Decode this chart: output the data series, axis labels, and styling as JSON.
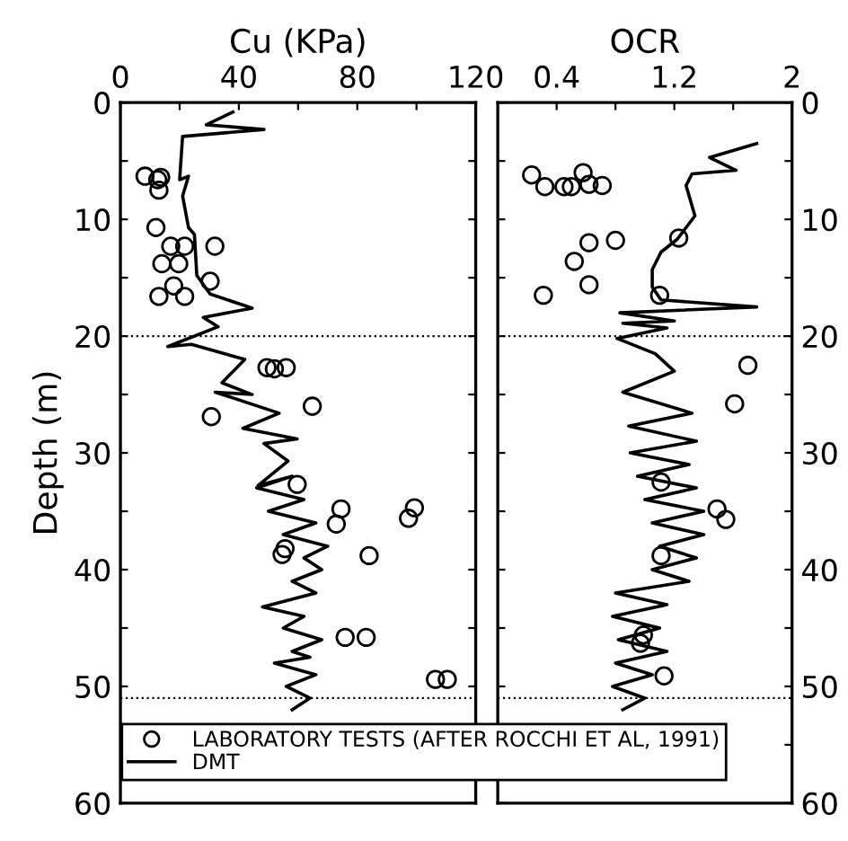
{
  "chart_data": [
    {
      "type": "scatter",
      "title": "Cu (KPa)",
      "ylabel": "Depth (m)",
      "xlim": [
        0,
        120
      ],
      "ylim": [
        60,
        0
      ],
      "xticks": [
        0,
        {
          "value": 20,
          "label": null
        },
        40,
        {
          "value": 60,
          "label": null
        },
        80,
        {
          "value": 100,
          "label": null
        },
        120
      ],
      "yticks": [
        0,
        {
          "value": 5,
          "label": null
        },
        10,
        {
          "value": 15,
          "label": null
        },
        20,
        {
          "value": 25,
          "label": null
        },
        30,
        {
          "value": 35,
          "label": null
        },
        40,
        {
          "value": 45,
          "label": null
        },
        50,
        {
          "value": 55,
          "label": null
        },
        60
      ],
      "legend": "bottom",
      "grid": false,
      "ref_lines": [
        {
          "axis": "y",
          "value": 20,
          "line_style": "dotted"
        },
        {
          "axis": "y",
          "value": 51,
          "line_style": "dotted"
        }
      ],
      "series": [
        {
          "name": "LABORATORY TESTS (AFTER ROCCHI ET AL, 1991)",
          "marker": "circle",
          "color": "#000000",
          "x": [
            8.3,
            12.6,
            13.6,
            13,
            12,
            17,
            21.7,
            31.9,
            14,
            19.7,
            30.3,
            18,
            13,
            21.7,
            49.5,
            52,
            56,
            64.8,
            30.7,
            59.7,
            74.5,
            72.9,
            97.3,
            99.3,
            54.6,
            55.6,
            84,
            75.9,
            83,
            106.4,
            110.4
          ],
          "values": [
            6.3,
            6.6,
            6.4,
            7.5,
            10.7,
            12.3,
            12.3,
            12.3,
            13.8,
            13.8,
            15.3,
            15.7,
            16.6,
            16.6,
            22.7,
            22.8,
            22.7,
            26,
            26.9,
            32.7,
            34.8,
            36.1,
            35.6,
            34.7,
            38.7,
            38.2,
            38.8,
            45.8,
            45.8,
            49.4,
            49.4
          ]
        },
        {
          "name": "DMT",
          "type": "line",
          "marker": "none",
          "line_style": "solid",
          "color": "#000000",
          "x": [
            38,
            29,
            48.5,
            21,
            20,
            23,
            21,
            23,
            25,
            25.8,
            30.3,
            44.5,
            28,
            33,
            16,
            24,
            42,
            34.3,
            44.5,
            32,
            53.6,
            41.4,
            59.7,
            48.5,
            56.6,
            46.5,
            58,
            46,
            62,
            50,
            66,
            55,
            70,
            62,
            68,
            58,
            66,
            48,
            62,
            55,
            68,
            58,
            64,
            52,
            66,
            56,
            64,
            58
          ],
          "values": [
            0.8,
            1.9,
            2.3,
            2.9,
            6.6,
            6.3,
            8,
            10.7,
            11.3,
            14.8,
            16.4,
            17.6,
            18.4,
            19.2,
            20.9,
            20.7,
            22,
            24,
            25,
            24.8,
            26.6,
            27.9,
            28.8,
            29.2,
            30.7,
            32.8,
            32,
            33,
            34,
            35,
            36,
            37,
            38,
            39,
            40,
            41,
            42,
            43.2,
            44,
            45,
            46,
            47,
            47.5,
            48,
            49,
            50,
            51,
            52
          ]
        }
      ]
    },
    {
      "type": "scatter",
      "title": "OCR",
      "xlim": [
        0,
        2
      ],
      "ylim": [
        60,
        0
      ],
      "xticks": [
        0.4,
        {
          "value": 0.8,
          "label": null
        },
        1.2,
        {
          "value": 1.6,
          "label": null
        },
        2
      ],
      "yticks": [
        0,
        {
          "value": 5,
          "label": null
        },
        10,
        {
          "value": 15,
          "label": null
        },
        20,
        {
          "value": 25,
          "label": null
        },
        30,
        {
          "value": 35,
          "label": null
        },
        40,
        {
          "value": 45,
          "label": null
        },
        50,
        {
          "value": 55,
          "label": null
        },
        60
      ],
      "grid": false,
      "ref_lines": [
        {
          "axis": "y",
          "value": 20,
          "line_style": "dotted"
        },
        {
          "axis": "y",
          "value": 51,
          "line_style": "dotted"
        }
      ],
      "series": [
        {
          "marker": "circle",
          "color": "#000000",
          "x": [
            0.23,
            0.32,
            0.45,
            0.5,
            0.58,
            0.62,
            0.71,
            0.62,
            0.8,
            0.52,
            0.62,
            0.31,
            1.1,
            1.23,
            1.7,
            1.61,
            1.11,
            1.49,
            1.55,
            1.11,
            0.99,
            0.97,
            1.13
          ],
          "values": [
            6.2,
            7.2,
            7.2,
            7.2,
            6,
            7,
            7.1,
            12,
            11.8,
            13.6,
            15.6,
            16.5,
            16.5,
            11.6,
            22.5,
            25.8,
            32.5,
            34.8,
            35.7,
            38.8,
            45.6,
            46.3,
            49.1
          ]
        },
        {
          "type": "line",
          "marker": "none",
          "line_style": "solid",
          "color": "#000000",
          "x": [
            1.76,
            1.44,
            1.62,
            1.32,
            1.28,
            1.34,
            1.28,
            1.22,
            1.11,
            1.05,
            1.05,
            1.11,
            1.76,
            0.83,
            1.2,
            0.85,
            1.15,
            0.81,
            1.07,
            1.2,
            0.85,
            1.32,
            0.89,
            1.35,
            0.9,
            1.3,
            0.95,
            1.35,
            1,
            1.4,
            1.05,
            1.4,
            1.1,
            1.35,
            1.05,
            1.3,
            0.8,
            1.15,
            0.78,
            1.1,
            0.82,
            1.15,
            0.8,
            1.05,
            0.78,
            1,
            0.85
          ],
          "values": [
            3.5,
            4.7,
            5.8,
            6.1,
            7.1,
            9.7,
            10.7,
            11.7,
            12.8,
            14.3,
            15.8,
            16.9,
            17.5,
            18,
            18.7,
            18.9,
            19.3,
            20.2,
            21.5,
            23,
            24.8,
            26.6,
            27.7,
            29,
            30,
            31,
            32,
            33,
            34,
            35,
            36,
            37,
            38,
            39,
            40,
            41,
            42,
            43,
            44,
            45,
            46,
            47,
            48,
            49,
            50,
            51,
            52
          ]
        }
      ]
    }
  ]
}
